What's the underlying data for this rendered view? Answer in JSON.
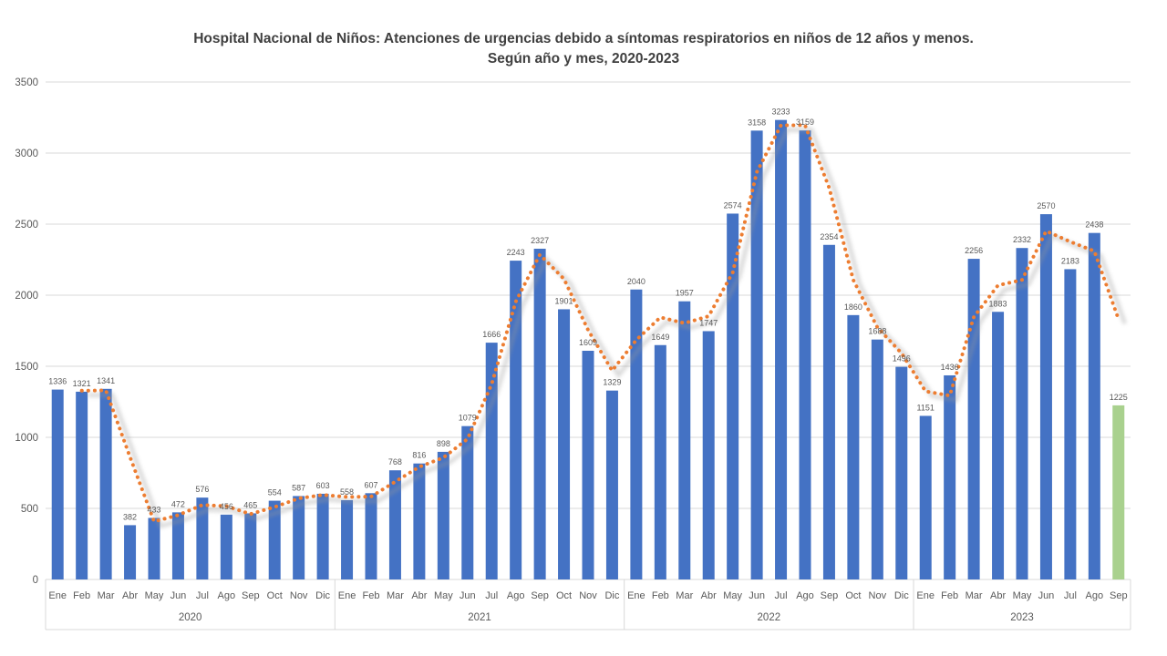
{
  "title": {
    "line1": "Hospital Nacional de Niños: Atenciones de urgencias debido a síntomas respiratorios en niños de 12 años y menos.",
    "line2": "Según año y mes, 2020-2023"
  },
  "chart_data": {
    "type": "bar",
    "title": "Hospital Nacional de Niños: Atenciones de urgencias debido a síntomas respiratorios en niños de 12 años y menos.",
    "subtitle": "Según año y mes, 2020-2023",
    "ylabel": "",
    "xlabel": "",
    "ylim": [
      0,
      3500
    ],
    "ytick_step": 500,
    "yticks": [
      0,
      500,
      1000,
      1500,
      2000,
      2500,
      3000,
      3500
    ],
    "grid": true,
    "legend": "none",
    "data_labels": true,
    "colors": {
      "bar": "#4472C4",
      "highlight_bar": "#A9D18E",
      "trend": "#ED7D31",
      "gridline": "#D9D9D9",
      "axis_text": "#595959",
      "data_label": "#595959",
      "title_text": "#404040"
    },
    "trendline": {
      "type": "moving_average",
      "period": 2,
      "style": "dotted"
    },
    "highlight_last_bar": true,
    "groups": [
      {
        "year": "2020",
        "months": [
          "Ene",
          "Feb",
          "Mar",
          "Abr",
          "May",
          "Jun",
          "Jul",
          "Ago",
          "Sep",
          "Oct",
          "Nov",
          "Dic"
        ],
        "values": [
          1336,
          1321,
          1341,
          382,
          433,
          472,
          576,
          456,
          465,
          554,
          587,
          603
        ]
      },
      {
        "year": "2021",
        "months": [
          "Ene",
          "Feb",
          "Mar",
          "Abr",
          "May",
          "Jun",
          "Jul",
          "Ago",
          "Sep",
          "Oct",
          "Nov",
          "Dic"
        ],
        "values": [
          558,
          607,
          768,
          816,
          898,
          1079,
          1666,
          2243,
          2327,
          1901,
          1609,
          1329
        ]
      },
      {
        "year": "2022",
        "months": [
          "Ene",
          "Feb",
          "Mar",
          "Abr",
          "May",
          "Jun",
          "Jul",
          "Ago",
          "Sep",
          "Oct",
          "Nov",
          "Dic"
        ],
        "values": [
          2040,
          1649,
          1957,
          1747,
          2574,
          3158,
          3233,
          3159,
          2354,
          1860,
          1688,
          1496
        ]
      },
      {
        "year": "2023",
        "months": [
          "Ene",
          "Feb",
          "Mar",
          "Abr",
          "May",
          "Jun",
          "Jul",
          "Ago",
          "Sep"
        ],
        "values": [
          1151,
          1436,
          2256,
          1883,
          2332,
          2570,
          2183,
          2438,
          1225
        ]
      }
    ]
  }
}
